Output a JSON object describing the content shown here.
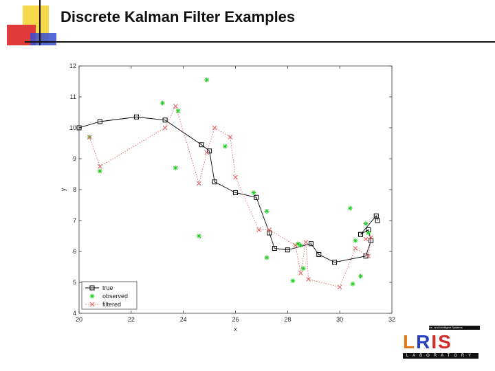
{
  "slide": {
    "title": "Discrete Kalman Filter Examples"
  },
  "logo": {
    "top_text": "ive, and Intelligent Systems",
    "letters": [
      "L",
      "R",
      "I",
      "S"
    ],
    "bottom_text": "LABORATORY"
  },
  "colors": {
    "true": "#000000",
    "observed": "#22cc22",
    "filtered": "#e06060",
    "deco_yellow": "#f7d84a",
    "deco_red": "#e03a3a",
    "deco_blue": "#3a4fd0"
  },
  "chart_data": {
    "type": "line",
    "title": "",
    "xlabel": "x",
    "ylabel": "y",
    "xlim": [
      20,
      32
    ],
    "ylim": [
      4,
      12
    ],
    "xticks": [
      20,
      22,
      24,
      26,
      28,
      30,
      32
    ],
    "yticks": [
      4,
      5,
      6,
      7,
      8,
      9,
      10,
      11,
      12
    ],
    "grid": false,
    "legend_position": "bottom-left",
    "series": [
      {
        "name": "true",
        "marker": "square",
        "line": "solid",
        "color": "#000000",
        "points": [
          [
            20.0,
            10.0
          ],
          [
            20.8,
            10.2
          ],
          [
            22.2,
            10.35
          ],
          [
            23.3,
            10.25
          ],
          [
            24.7,
            9.45
          ],
          [
            25.0,
            9.25
          ],
          [
            25.2,
            8.25
          ],
          [
            26.0,
            7.9
          ],
          [
            26.8,
            7.75
          ],
          [
            27.3,
            6.6
          ],
          [
            27.5,
            6.1
          ],
          [
            28.0,
            6.05
          ],
          [
            28.9,
            6.25
          ],
          [
            29.2,
            5.9
          ],
          [
            29.8,
            5.65
          ],
          [
            31.0,
            5.85
          ],
          [
            31.2,
            6.35
          ],
          [
            31.1,
            6.7
          ],
          [
            30.8,
            6.55
          ],
          [
            31.4,
            7.15
          ],
          [
            31.45,
            7.0
          ]
        ]
      },
      {
        "name": "observed",
        "marker": "star",
        "line": "none",
        "color": "#22cc22",
        "points": [
          [
            20.4,
            9.7
          ],
          [
            20.8,
            8.6
          ],
          [
            23.2,
            10.8
          ],
          [
            23.7,
            8.7
          ],
          [
            23.8,
            10.55
          ],
          [
            24.6,
            6.5
          ],
          [
            24.9,
            11.55
          ],
          [
            25.6,
            9.4
          ],
          [
            26.7,
            7.9
          ],
          [
            27.2,
            7.3
          ],
          [
            27.2,
            5.8
          ],
          [
            28.2,
            5.05
          ],
          [
            28.4,
            6.25
          ],
          [
            28.5,
            6.2
          ],
          [
            28.6,
            5.45
          ],
          [
            30.4,
            7.4
          ],
          [
            30.5,
            4.95
          ],
          [
            30.6,
            6.35
          ],
          [
            30.8,
            5.2
          ],
          [
            31.0,
            6.9
          ],
          [
            31.1,
            6.6
          ]
        ]
      },
      {
        "name": "filtered",
        "marker": "x",
        "line": "dotted",
        "color": "#e06060",
        "points": [
          [
            20.4,
            9.7
          ],
          [
            20.8,
            8.75
          ],
          [
            23.3,
            10.0
          ],
          [
            23.7,
            10.7
          ],
          [
            24.6,
            8.2
          ],
          [
            24.9,
            9.2
          ],
          [
            25.2,
            10.0
          ],
          [
            25.8,
            9.7
          ],
          [
            26.0,
            8.4
          ],
          [
            26.9,
            6.7
          ],
          [
            27.3,
            6.7
          ],
          [
            28.3,
            6.2
          ],
          [
            28.5,
            5.3
          ],
          [
            28.7,
            6.3
          ],
          [
            28.8,
            5.1
          ],
          [
            30.0,
            4.85
          ],
          [
            30.6,
            6.1
          ],
          [
            31.1,
            5.85
          ],
          [
            31.2,
            6.45
          ],
          [
            31.0,
            6.4
          ]
        ]
      }
    ]
  }
}
